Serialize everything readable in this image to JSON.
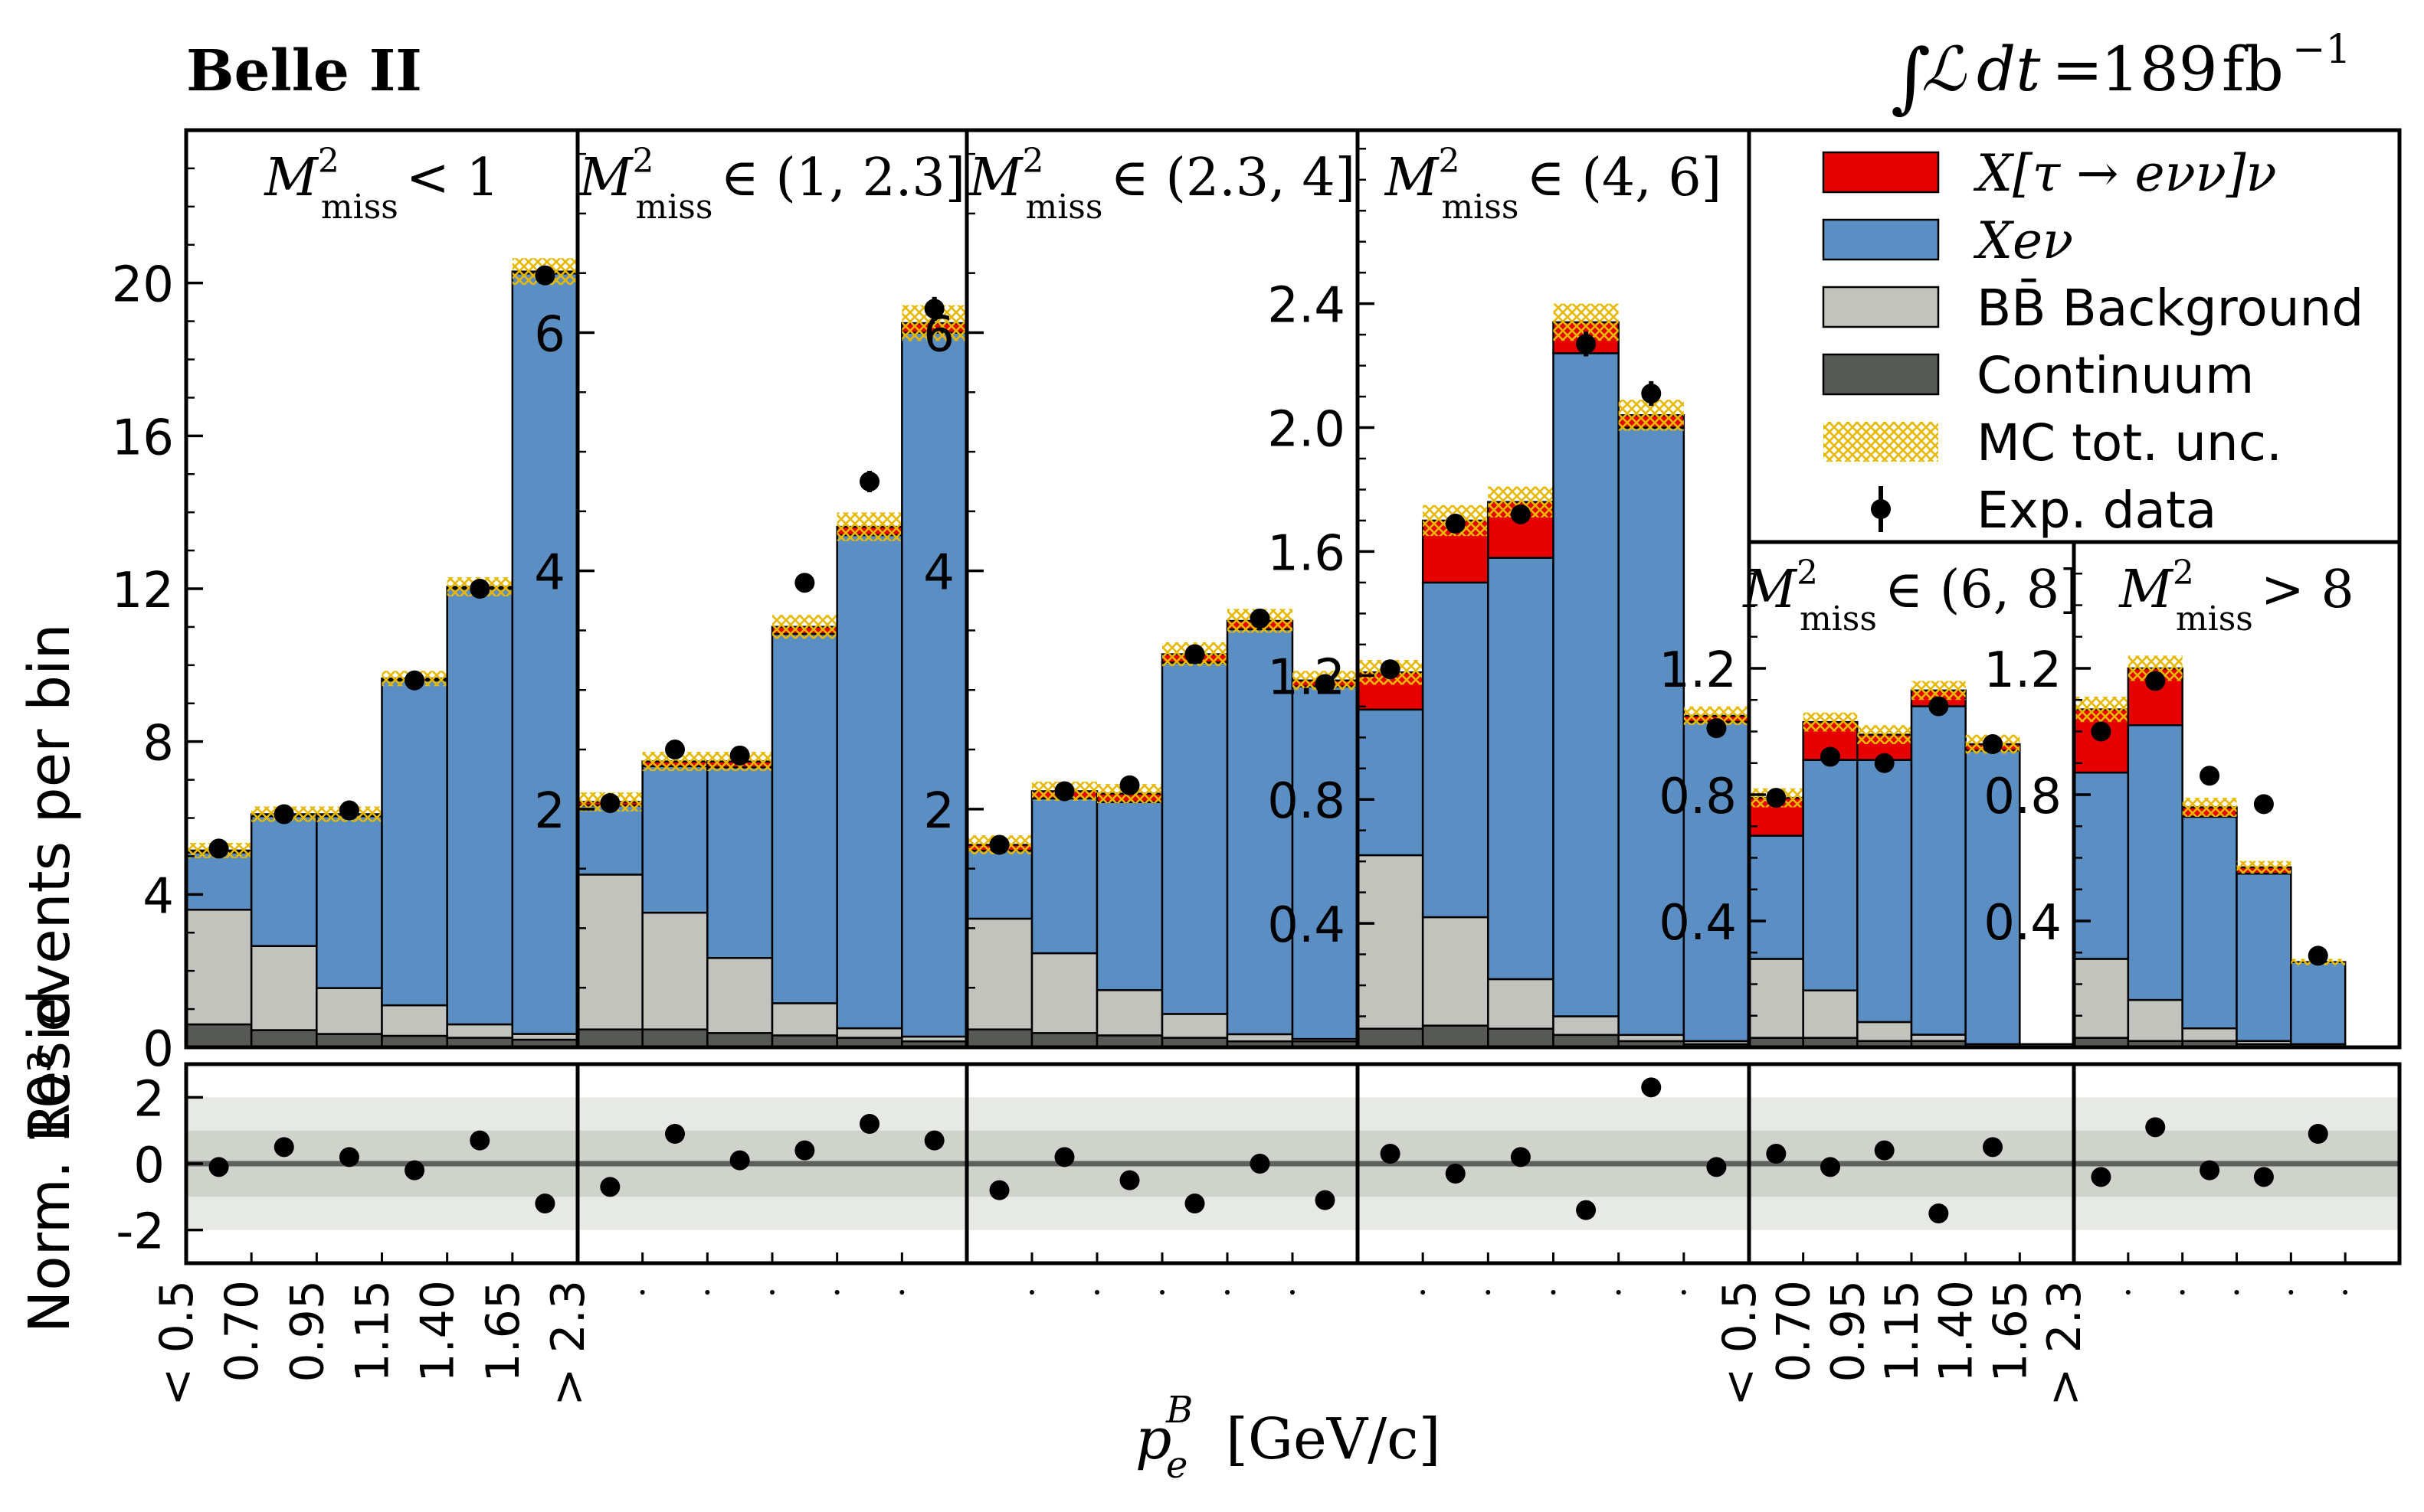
{
  "header": {
    "experiment": "Belle II",
    "lumi_int": "∫",
    "lumi_L": "ℒ",
    "lumi_dt": "dt",
    "lumi_eq": "=",
    "lumi_value": "189",
    "lumi_unit": "fb",
    "lumi_exp": "−1"
  },
  "axes": {
    "ylabel_main": "10³ events per bin",
    "ylabel_resid": "Norm. Resid.",
    "xlabel_p": "p",
    "xlabel_sub": "e",
    "xlabel_sup": "B",
    "xlabel_unit": "[GeV/c]"
  },
  "legend": [
    {
      "key": "tau",
      "label": "X[τ → eνν]ν",
      "color": "#e60000"
    },
    {
      "key": "xenu",
      "label": "Xeν",
      "color": "#5b8fc4"
    },
    {
      "key": "bb",
      "label": "BB̄ Background",
      "color": "#c2c3bd"
    },
    {
      "key": "cont",
      "label": "Continuum",
      "color": "#575a54"
    },
    {
      "key": "unc",
      "label": "MC tot. unc.",
      "color": "#e8b800"
    },
    {
      "key": "data",
      "label": "Exp. data",
      "color": "#000000"
    }
  ],
  "chart_data": {
    "type": "bar",
    "stacked": true,
    "title": "Belle II",
    "xlabel": "p_e^B [GeV/c]",
    "ylabel": "10^3 events per bin",
    "ylabel_residuals": "Norm. Resid.",
    "categories": [
      "< 0.5",
      "0.70",
      "0.95",
      "1.15",
      "1.40",
      "1.65",
      "> 2.3"
    ],
    "residual_ylim": [
      -3,
      3
    ],
    "residual_yticks": [
      "2",
      "0",
      "-2"
    ],
    "residual_bands": {
      "inner": 1,
      "outer": 2
    },
    "panels": [
      {
        "label": "M²miss < 1",
        "m_sub": "miss",
        "m_rel": "< 1",
        "ylim": [
          0,
          24
        ],
        "yticks": [
          0,
          4,
          8,
          12,
          16,
          20
        ],
        "ytick_labels": [
          "0",
          "4",
          "8",
          "12",
          "16",
          "20"
        ],
        "series": [
          {
            "name": "Continuum",
            "values": [
              0.6,
              0.45,
              0.35,
              0.3,
              0.25,
              0.2
            ]
          },
          {
            "name": "BB Background",
            "values": [
              3.0,
              2.2,
              1.2,
              0.8,
              0.35,
              0.15
            ]
          },
          {
            "name": "Xeν",
            "values": [
              1.5,
              3.4,
              4.5,
              8.5,
              11.4,
              19.9
            ]
          },
          {
            "name": "X[τ → eνν]ν",
            "values": [
              0.05,
              0.05,
              0.05,
              0.05,
              0.05,
              0.05
            ]
          }
        ],
        "data": [
          5.2,
          6.1,
          6.2,
          9.6,
          12.0,
          20.2
        ],
        "data_err": [
          0.1,
          0.1,
          0.1,
          0.15,
          0.15,
          0.2
        ],
        "mc_unc": [
          0.2,
          0.2,
          0.2,
          0.2,
          0.25,
          0.35
        ],
        "residuals": [
          -0.1,
          0.5,
          0.2,
          -0.2,
          0.7,
          -1.2
        ]
      },
      {
        "label": "M²miss ∈ (1, 2.3]",
        "m_sub": "miss",
        "m_rel": "∈ (1, 2.3]",
        "ylim": [
          0,
          7.7
        ],
        "yticks": [
          2,
          4,
          6
        ],
        "ytick_labels": [
          "2",
          "4",
          "6"
        ],
        "series": [
          {
            "name": "Continuum",
            "values": [
              0.15,
              0.15,
              0.12,
              0.1,
              0.08,
              0.05
            ]
          },
          {
            "name": "BB Background",
            "values": [
              1.3,
              0.98,
              0.63,
              0.27,
              0.08,
              0.04
            ]
          },
          {
            "name": "Xeν",
            "values": [
              0.58,
              1.23,
              1.6,
              3.1,
              4.14,
              5.91
            ]
          },
          {
            "name": "X[τ → eνν]ν",
            "values": [
              0.03,
              0.04,
              0.05,
              0.06,
              0.07,
              0.08
            ]
          }
        ],
        "data": [
          2.05,
          2.5,
          2.45,
          3.9,
          4.75,
          6.2
        ],
        "data_err": [
          0.05,
          0.06,
          0.06,
          0.08,
          0.09,
          0.1
        ],
        "mc_unc": [
          0.08,
          0.08,
          0.08,
          0.1,
          0.12,
          0.15
        ],
        "residuals": [
          -0.7,
          0.9,
          0.1,
          0.4,
          1.2,
          0.7
        ]
      },
      {
        "label": "M²miss ∈ (2.3, 4]",
        "m_sub": "miss",
        "m_rel": "∈ (2.3, 4]",
        "ylim": [
          0,
          7.7
        ],
        "yticks": [
          2,
          4,
          6
        ],
        "ytick_labels": [
          "2",
          "4",
          "6"
        ],
        "series": [
          {
            "name": "Continuum",
            "values": [
              0.15,
              0.12,
              0.1,
              0.08,
              0.05,
              0.05
            ]
          },
          {
            "name": "BB Background",
            "values": [
              0.93,
              0.67,
              0.38,
              0.2,
              0.06,
              0.02
            ]
          },
          {
            "name": "Xeν",
            "values": [
              0.57,
              1.3,
              1.58,
              2.95,
              3.4,
              2.96
            ]
          },
          {
            "name": "X[τ → eνν]ν",
            "values": [
              0.05,
              0.06,
              0.07,
              0.07,
              0.07,
              0.05
            ]
          }
        ],
        "data": [
          1.7,
          2.15,
          2.2,
          3.3,
          3.6,
          3.05
        ],
        "data_err": [
          0.05,
          0.05,
          0.05,
          0.07,
          0.07,
          0.06
        ],
        "mc_unc": [
          0.08,
          0.08,
          0.08,
          0.1,
          0.1,
          0.08
        ],
        "residuals": [
          -0.8,
          0.2,
          -0.5,
          -1.2,
          0.0,
          -1.1
        ]
      },
      {
        "label": "M²miss ∈ (4, 6]",
        "m_sub": "miss",
        "m_rel": "∈ (4, 6]",
        "ylim": [
          0,
          2.96
        ],
        "yticks": [
          0.4,
          0.8,
          1.2,
          1.6,
          2.0,
          2.4
        ],
        "ytick_labels": [
          "0.4",
          "0.8",
          "1.2",
          "1.6",
          "2.0",
          "2.4"
        ],
        "series": [
          {
            "name": "Continuum",
            "values": [
              0.06,
              0.07,
              0.06,
              0.04,
              0.02,
              0.01
            ]
          },
          {
            "name": "BB Background",
            "values": [
              0.56,
              0.35,
              0.16,
              0.06,
              0.02,
              0.01
            ]
          },
          {
            "name": "Xeν",
            "values": [
              0.47,
              1.08,
              1.36,
              2.14,
              1.96,
              1.03
            ]
          },
          {
            "name": "X[τ → eνν]ν",
            "values": [
              0.12,
              0.2,
              0.18,
              0.1,
              0.04,
              0.02
            ]
          }
        ],
        "data": [
          1.22,
          1.69,
          1.72,
          2.27,
          2.11,
          1.03
        ],
        "data_err": [
          0.03,
          0.03,
          0.03,
          0.04,
          0.04,
          0.02
        ],
        "mc_unc": [
          0.04,
          0.05,
          0.05,
          0.06,
          0.05,
          0.03
        ],
        "residuals": [
          0.3,
          -0.3,
          0.2,
          -1.4,
          2.3,
          -0.1
        ]
      },
      {
        "label": "M²miss ∈ (6, 8]",
        "m_sub": "miss",
        "m_rel": "∈ (6, 8]",
        "ylim": [
          0,
          1.6
        ],
        "yticks": [
          0.4,
          0.8,
          1.2
        ],
        "ytick_labels": [
          "0.4",
          "0.8",
          "1.2"
        ],
        "series": [
          {
            "name": "Continuum",
            "values": [
              0.03,
              0.03,
              0.02,
              0.02,
              0.01,
              0.01
            ]
          },
          {
            "name": "BB Background",
            "values": [
              0.25,
              0.15,
              0.06,
              0.02,
              0.0,
              0.0
            ]
          },
          {
            "name": "Xeν",
            "values": [
              0.39,
              0.73,
              0.83,
              1.04,
              0.93,
              0.0
            ]
          },
          {
            "name": "X[τ → eνν]ν",
            "values": [
              0.12,
              0.12,
              0.08,
              0.05,
              0.02,
              0.0
            ]
          }
        ],
        "data": [
          0.79,
          0.92,
          0.9,
          1.08,
          0.96
        ],
        "data_err": [
          0.02,
          0.02,
          0.02,
          0.03,
          0.02
        ],
        "mc_unc": [
          0.03,
          0.03,
          0.03,
          0.03,
          0.03,
          0.0
        ],
        "residuals": [
          0.3,
          -0.1,
          0.4,
          -1.5,
          0.5
        ]
      },
      {
        "label": "M²miss > 8",
        "m_sub": "miss",
        "m_rel": "> 8",
        "ylim": [
          0,
          1.6
        ],
        "yticks": [
          0.4,
          0.8,
          1.2
        ],
        "ytick_labels": [
          "0.4",
          "0.8",
          "1.2"
        ],
        "series": [
          {
            "name": "Continuum",
            "values": [
              0.03,
              0.02,
              0.02,
              0.01,
              0.01
            ]
          },
          {
            "name": "BB Background",
            "values": [
              0.25,
              0.13,
              0.04,
              0.01,
              0.0
            ]
          },
          {
            "name": "Xeν",
            "values": [
              0.59,
              0.87,
              0.67,
              0.53,
              0.26
            ]
          },
          {
            "name": "X[τ → eνν]ν",
            "values": [
              0.2,
              0.18,
              0.03,
              0.02,
              0.0
            ]
          }
        ],
        "data": [
          1.0,
          1.16,
          0.86,
          0.77,
          0.29
        ],
        "data_err": [
          0.02,
          0.03,
          0.02,
          0.02,
          0.01
        ],
        "mc_unc": [
          0.04,
          0.04,
          0.03,
          0.02,
          0.01
        ],
        "residuals": [
          -0.4,
          1.1,
          -0.2,
          -0.4,
          0.9
        ]
      }
    ]
  }
}
